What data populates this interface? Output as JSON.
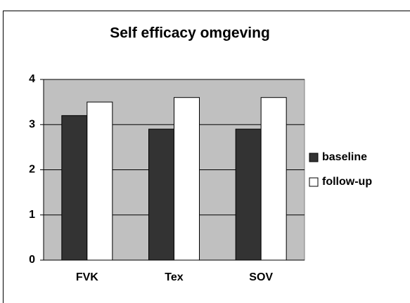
{
  "chart_data": {
    "type": "bar",
    "title": "Self efficacy omgeving",
    "categories": [
      "FVK",
      "Tex",
      "SOV"
    ],
    "series": [
      {
        "name": "baseline",
        "color": "#333333",
        "values": [
          3.2,
          2.9,
          2.9
        ]
      },
      {
        "name": "follow-up",
        "color": "#ffffff",
        "values": [
          3.5,
          3.6,
          3.6
        ]
      }
    ],
    "ylim": [
      0,
      4
    ],
    "yticks": [
      0,
      1,
      2,
      3,
      4
    ],
    "grid": true,
    "legend": "right"
  }
}
